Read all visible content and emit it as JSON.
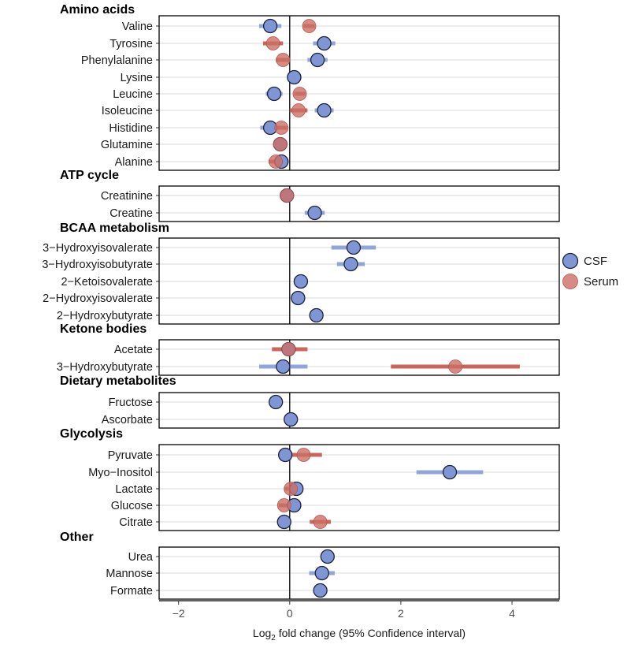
{
  "chart_data": {
    "type": "forest",
    "xlabel": "Log2 fold change (95% Confidence interval)",
    "xlabel_parts": {
      "prefix": "Log",
      "subscript": "2",
      "suffix": " fold change (95% Confidence interval)"
    },
    "xlim": [
      -2.35,
      4.85
    ],
    "xticks": [
      -2,
      0,
      2,
      4
    ],
    "xtick_labels": [
      "−2",
      "0",
      "2",
      "4"
    ],
    "grid": "horizontal row lines",
    "legend_position": "right",
    "colors": {
      "CSF": "#8096d4",
      "Serum": "#cc6f65",
      "CSF_ci": "#8096d4",
      "Serum_ci": "#c4574c"
    },
    "legend": [
      {
        "name": "CSF",
        "color": "#8096d4"
      },
      {
        "name": "Serum",
        "color": "#cc6f65"
      }
    ],
    "groups": [
      {
        "title": "Amino acids",
        "rows": [
          {
            "label": "Valine",
            "csf": {
              "est": -0.35,
              "lo": -0.55,
              "hi": -0.15
            },
            "serum": {
              "est": 0.35,
              "lo": 0.25,
              "hi": 0.45
            }
          },
          {
            "label": "Tyrosine",
            "csf": {
              "est": 0.62,
              "lo": 0.42,
              "hi": 0.82
            },
            "serum": {
              "est": -0.3,
              "lo": -0.48,
              "hi": -0.12
            }
          },
          {
            "label": "Phenylalanine",
            "csf": {
              "est": 0.5,
              "lo": 0.32,
              "hi": 0.68
            },
            "serum": {
              "est": -0.12,
              "lo": -0.25,
              "hi": 0.0
            }
          },
          {
            "label": "Lysine",
            "csf": {
              "est": 0.08,
              "lo": -0.05,
              "hi": 0.21
            },
            "serum": null
          },
          {
            "label": "Leucine",
            "csf": {
              "est": -0.28,
              "lo": -0.43,
              "hi": -0.13
            },
            "serum": {
              "est": 0.18,
              "lo": 0.08,
              "hi": 0.28
            }
          },
          {
            "label": "Isoleucine",
            "csf": {
              "est": 0.62,
              "lo": 0.45,
              "hi": 0.79
            },
            "serum": {
              "est": 0.16,
              "lo": 0.0,
              "hi": 0.32
            }
          },
          {
            "label": "Histidine",
            "csf": {
              "est": -0.35,
              "lo": -0.53,
              "hi": -0.17
            },
            "serum": {
              "est": -0.15,
              "lo": -0.25,
              "hi": -0.05
            }
          },
          {
            "label": "Glutamine",
            "csf": {
              "est": -0.17,
              "lo": -0.27,
              "hi": -0.07
            },
            "serum": {
              "est": -0.17,
              "lo": -0.25,
              "hi": -0.09
            }
          },
          {
            "label": "Alanine",
            "csf": {
              "est": -0.15,
              "lo": -0.28,
              "hi": -0.02
            },
            "serum": {
              "est": -0.25,
              "lo": -0.38,
              "hi": -0.12
            }
          }
        ]
      },
      {
        "title": "ATP cycle",
        "rows": [
          {
            "label": "Creatinine",
            "csf": {
              "est": -0.05,
              "lo": -0.13,
              "hi": 0.03
            },
            "serum": {
              "est": -0.05,
              "lo": -0.13,
              "hi": 0.03
            }
          },
          {
            "label": "Creatine",
            "csf": {
              "est": 0.45,
              "lo": 0.27,
              "hi": 0.63
            },
            "serum": null
          }
        ]
      },
      {
        "title": "BCAA metabolism",
        "rows": [
          {
            "label": "3−Hydroxyisovalerate",
            "csf": {
              "est": 1.15,
              "lo": 0.75,
              "hi": 1.55
            },
            "serum": null
          },
          {
            "label": "3−Hydroxyisobutyrate",
            "csf": {
              "est": 1.1,
              "lo": 0.85,
              "hi": 1.35
            },
            "serum": null
          },
          {
            "label": "2−Ketoisovalerate",
            "csf": {
              "est": 0.2,
              "lo": 0.12,
              "hi": 0.28
            },
            "serum": null
          },
          {
            "label": "2−Hydroxyisovalerate",
            "csf": {
              "est": 0.15,
              "lo": 0.07,
              "hi": 0.23
            },
            "serum": null
          },
          {
            "label": "2−Hydroxybutyrate",
            "csf": {
              "est": 0.48,
              "lo": 0.38,
              "hi": 0.58
            },
            "serum": null
          }
        ]
      },
      {
        "title": "Ketone bodies",
        "rows": [
          {
            "label": "Acetate",
            "csf": {
              "est": -0.02,
              "lo": -0.12,
              "hi": 0.08
            },
            "serum": {
              "est": -0.02,
              "lo": -0.32,
              "hi": 0.32
            }
          },
          {
            "label": "3−Hydroxybutyrate",
            "csf": {
              "est": -0.12,
              "lo": -0.55,
              "hi": 0.32
            },
            "serum": {
              "est": 2.98,
              "lo": 1.82,
              "hi": 4.14
            }
          }
        ]
      },
      {
        "title": "Dietary metabolites",
        "rows": [
          {
            "label": "Fructose",
            "csf": {
              "est": -0.25,
              "lo": -0.33,
              "hi": -0.17
            },
            "serum": null
          },
          {
            "label": "Ascorbate",
            "csf": {
              "est": 0.02,
              "lo": -0.06,
              "hi": 0.1
            },
            "serum": null
          }
        ]
      },
      {
        "title": "Glycolysis",
        "rows": [
          {
            "label": "Pyruvate",
            "csf": {
              "est": -0.08,
              "lo": -0.16,
              "hi": 0.0
            },
            "serum": {
              "est": 0.25,
              "lo": -0.08,
              "hi": 0.58
            }
          },
          {
            "label": "Myo−Inositol",
            "csf": {
              "est": 2.88,
              "lo": 2.28,
              "hi": 3.48
            },
            "serum": null
          },
          {
            "label": "Lactate",
            "csf": {
              "est": 0.12,
              "lo": 0.02,
              "hi": 0.22
            },
            "serum": {
              "est": 0.02,
              "lo": -0.1,
              "hi": 0.14
            }
          },
          {
            "label": "Glucose",
            "csf": {
              "est": 0.08,
              "lo": -0.02,
              "hi": 0.18
            },
            "serum": {
              "est": -0.1,
              "lo": -0.2,
              "hi": 0.0
            }
          },
          {
            "label": "Citrate",
            "csf": {
              "est": -0.1,
              "lo": -0.18,
              "hi": -0.02
            },
            "serum": {
              "est": 0.55,
              "lo": 0.36,
              "hi": 0.74
            }
          }
        ]
      },
      {
        "title": "Other",
        "rows": [
          {
            "label": "Urea",
            "csf": {
              "est": 0.68,
              "lo": 0.6,
              "hi": 0.76
            },
            "serum": null
          },
          {
            "label": "Mannose",
            "csf": {
              "est": 0.58,
              "lo": 0.35,
              "hi": 0.81
            },
            "serum": null
          },
          {
            "label": "Formate",
            "csf": {
              "est": 0.55,
              "lo": 0.47,
              "hi": 0.63
            },
            "serum": null
          }
        ]
      }
    ]
  }
}
